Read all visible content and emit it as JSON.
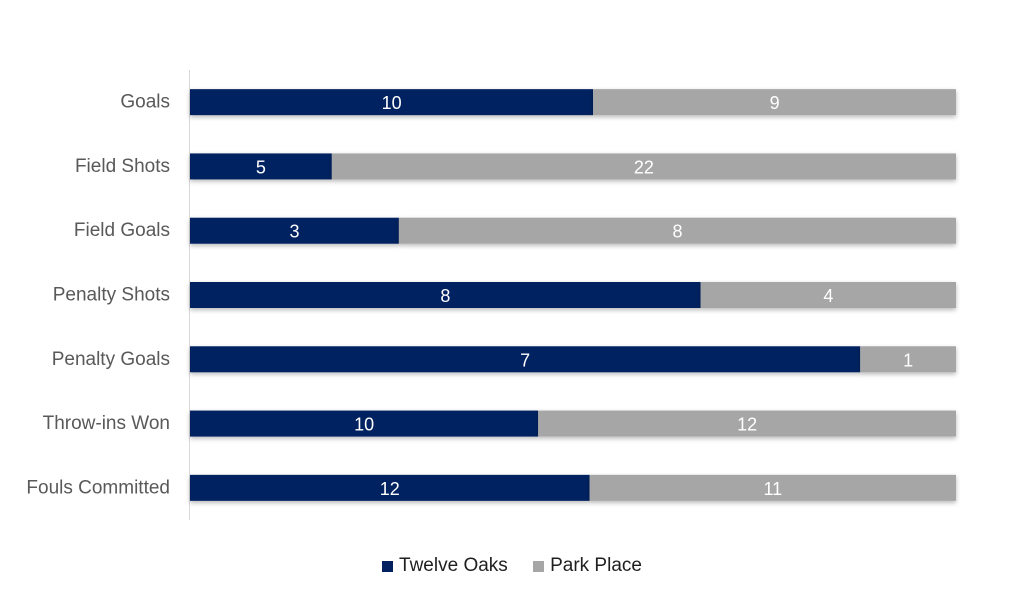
{
  "chart_data": {
    "type": "bar",
    "orientation": "horizontal",
    "stacked": "percent",
    "categories": [
      "Goals",
      "Field Shots",
      "Field Goals",
      "Penalty Shots",
      "Penalty Goals",
      "Throw-ins Won",
      "Fouls Committed"
    ],
    "series": [
      {
        "name": "Twelve Oaks",
        "values": [
          10,
          5,
          3,
          8,
          7,
          10,
          12
        ],
        "color": "#002060"
      },
      {
        "name": "Park Place",
        "values": [
          9,
          22,
          8,
          4,
          1,
          12,
          11
        ],
        "color": "#a6a6a6"
      }
    ],
    "title": "",
    "xlabel": "",
    "ylabel": "",
    "grid": false,
    "legend_position": "bottom"
  }
}
